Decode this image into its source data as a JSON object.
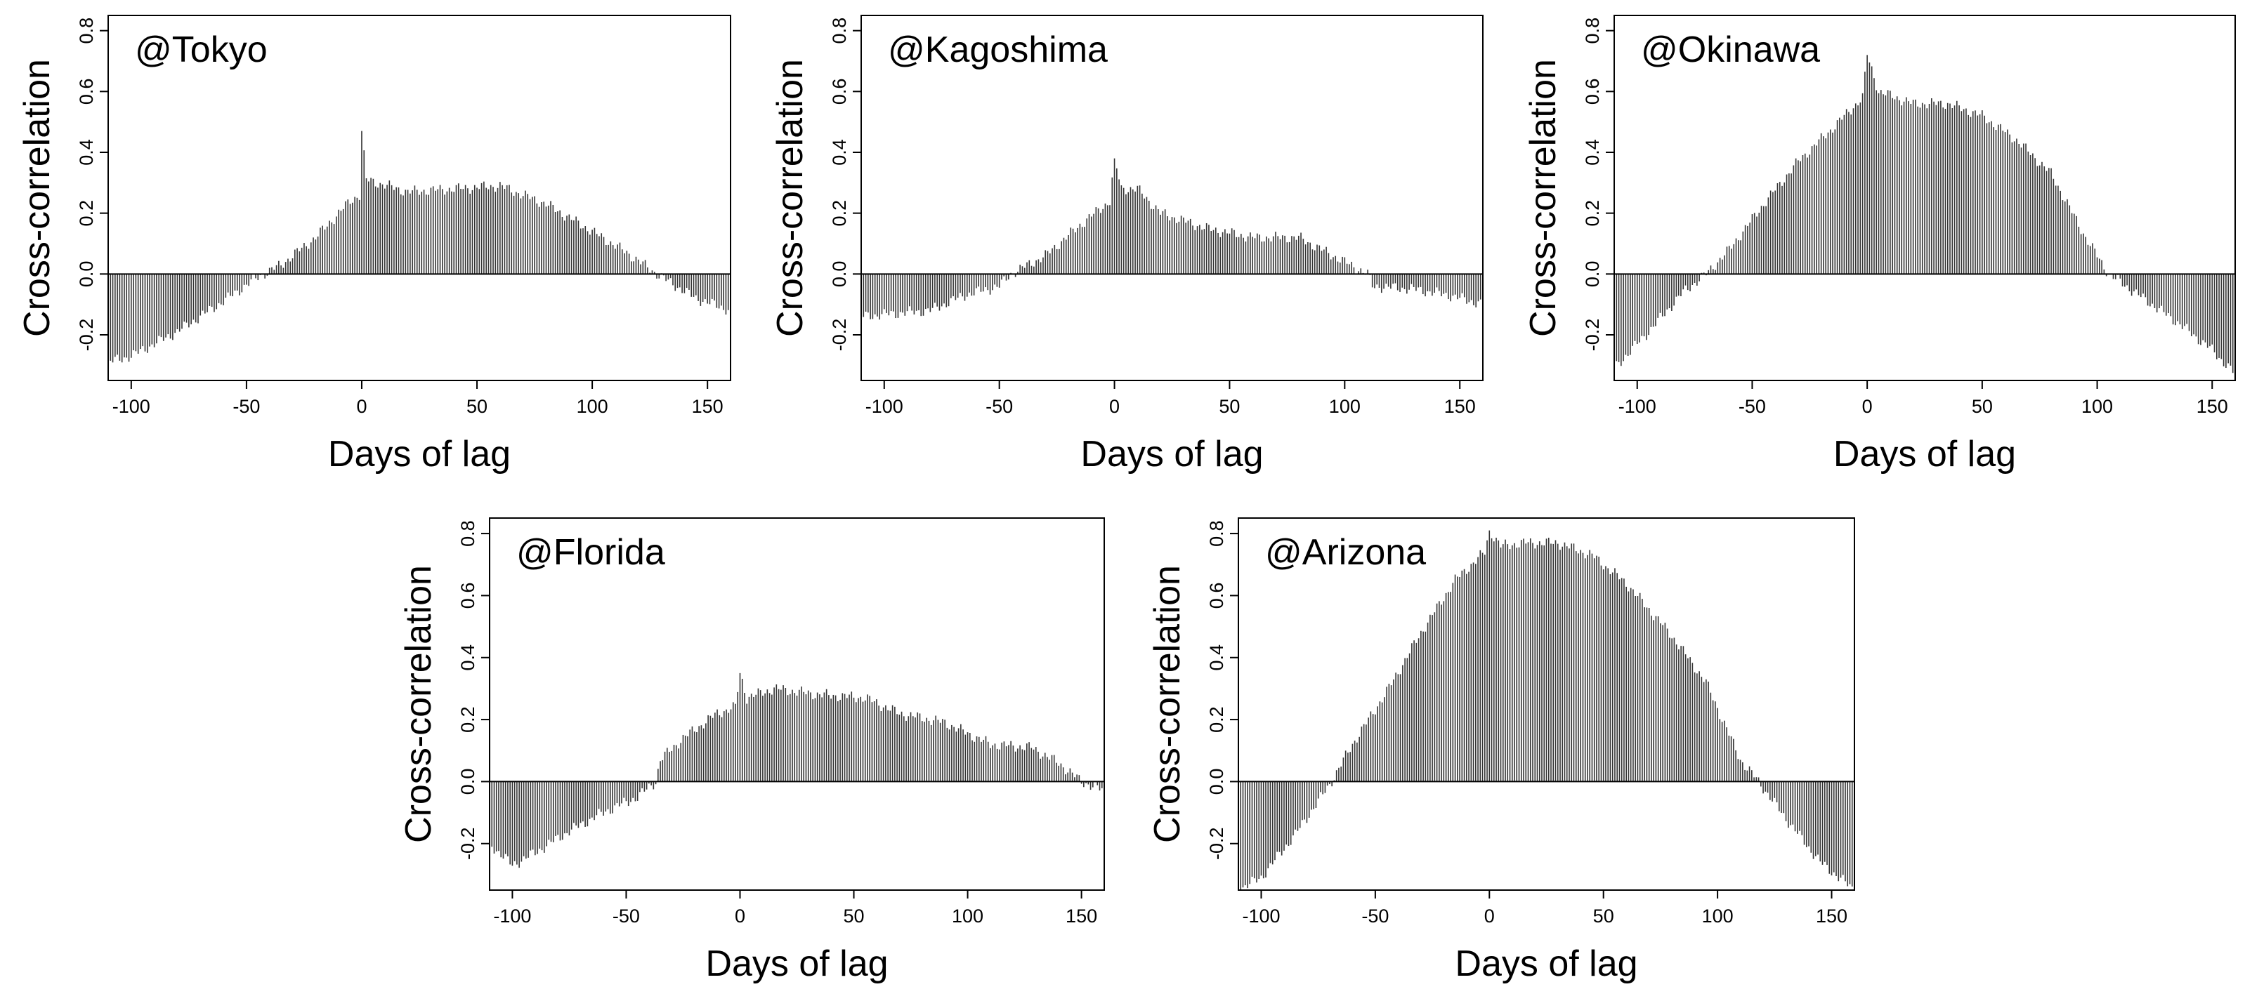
{
  "chart_data": [
    {
      "type": "bar",
      "title": "@Tokyo",
      "xlabel": "Days of lag",
      "ylabel": "Cross-correlation",
      "xlim": [
        -110,
        160
      ],
      "ylim": [
        -0.35,
        0.85
      ],
      "xticks": [
        "-100",
        "-50",
        "0",
        "50",
        "100",
        "150"
      ],
      "yticks": [
        "-0.2",
        "0.0",
        "0.2",
        "0.4",
        "0.6",
        "0.8"
      ],
      "grid": false,
      "legend": "none",
      "bar_color": "#333333",
      "profile": [
        [
          -110,
          -0.29
        ],
        [
          -100,
          -0.27
        ],
        [
          -80,
          -0.19
        ],
        [
          -60,
          -0.09
        ],
        [
          -45,
          -0.01
        ],
        [
          -35,
          0.03
        ],
        [
          -20,
          0.12
        ],
        [
          -5,
          0.24
        ],
        [
          -1,
          0.26
        ],
        [
          0,
          0.47
        ],
        [
          2,
          0.31
        ],
        [
          20,
          0.27
        ],
        [
          40,
          0.28
        ],
        [
          60,
          0.29
        ],
        [
          80,
          0.23
        ],
        [
          100,
          0.14
        ],
        [
          115,
          0.07
        ],
        [
          130,
          -0.01
        ],
        [
          145,
          -0.08
        ],
        [
          160,
          -0.12
        ]
      ]
    },
    {
      "type": "bar",
      "title": "@Kagoshima",
      "xlabel": "Days of lag",
      "ylabel": "Cross-correlation",
      "xlim": [
        -110,
        160
      ],
      "ylim": [
        -0.35,
        0.85
      ],
      "xticks": [
        "-100",
        "-50",
        "0",
        "50",
        "100",
        "150"
      ],
      "yticks": [
        "-0.2",
        "0.0",
        "0.2",
        "0.4",
        "0.6",
        "0.8"
      ],
      "grid": false,
      "legend": "none",
      "bar_color": "#333333",
      "profile": [
        [
          -110,
          -0.14
        ],
        [
          -95,
          -0.13
        ],
        [
          -80,
          -0.12
        ],
        [
          -65,
          -0.07
        ],
        [
          -50,
          -0.04
        ],
        [
          -45,
          0.0
        ],
        [
          -30,
          0.06
        ],
        [
          -15,
          0.16
        ],
        [
          -2,
          0.24
        ],
        [
          0,
          0.38
        ],
        [
          3,
          0.28
        ],
        [
          10,
          0.28
        ],
        [
          20,
          0.2
        ],
        [
          40,
          0.15
        ],
        [
          60,
          0.12
        ],
        [
          80,
          0.12
        ],
        [
          95,
          0.06
        ],
        [
          110,
          0.0
        ],
        [
          112,
          -0.04
        ],
        [
          130,
          -0.05
        ],
        [
          145,
          -0.07
        ],
        [
          160,
          -0.1
        ]
      ]
    },
    {
      "type": "bar",
      "title": "@Okinawa",
      "xlabel": "Days of lag",
      "ylabel": "Cross-correlation",
      "xlim": [
        -110,
        160
      ],
      "ylim": [
        -0.35,
        0.85
      ],
      "xticks": [
        "-100",
        "-50",
        "0",
        "50",
        "100",
        "150"
      ],
      "yticks": [
        "-0.2",
        "0.0",
        "0.2",
        "0.4",
        "0.6",
        "0.8"
      ],
      "grid": false,
      "legend": "none",
      "bar_color": "#333333",
      "profile": [
        [
          -110,
          -0.31
        ],
        [
          -95,
          -0.19
        ],
        [
          -80,
          -0.06
        ],
        [
          -70,
          0.0
        ],
        [
          -60,
          0.08
        ],
        [
          -45,
          0.23
        ],
        [
          -30,
          0.37
        ],
        [
          -15,
          0.48
        ],
        [
          -2,
          0.58
        ],
        [
          0,
          0.72
        ],
        [
          5,
          0.6
        ],
        [
          20,
          0.56
        ],
        [
          35,
          0.56
        ],
        [
          50,
          0.52
        ],
        [
          65,
          0.44
        ],
        [
          80,
          0.33
        ],
        [
          95,
          0.12
        ],
        [
          105,
          0.0
        ],
        [
          120,
          -0.08
        ],
        [
          135,
          -0.16
        ],
        [
          150,
          -0.25
        ],
        [
          160,
          -0.33
        ]
      ]
    },
    {
      "type": "bar",
      "title": "@Florida",
      "xlabel": "Days of lag",
      "ylabel": "Cross-correlation",
      "xlim": [
        -110,
        160
      ],
      "ylim": [
        -0.35,
        0.85
      ],
      "xticks": [
        "-100",
        "-50",
        "0",
        "50",
        "100",
        "150"
      ],
      "yticks": [
        "-0.2",
        "0.0",
        "0.2",
        "0.4",
        "0.6",
        "0.8"
      ],
      "grid": false,
      "legend": "none",
      "bar_color": "#333333",
      "profile": [
        [
          -110,
          -0.2
        ],
        [
          -100,
          -0.27
        ],
        [
          -90,
          -0.23
        ],
        [
          -75,
          -0.16
        ],
        [
          -60,
          -0.1
        ],
        [
          -45,
          -0.05
        ],
        [
          -37,
          0.0
        ],
        [
          -35,
          0.07
        ],
        [
          -25,
          0.14
        ],
        [
          -10,
          0.22
        ],
        [
          -2,
          0.24
        ],
        [
          0,
          0.35
        ],
        [
          3,
          0.27
        ],
        [
          15,
          0.3
        ],
        [
          35,
          0.28
        ],
        [
          55,
          0.27
        ],
        [
          70,
          0.22
        ],
        [
          90,
          0.19
        ],
        [
          110,
          0.12
        ],
        [
          128,
          0.11
        ],
        [
          140,
          0.06
        ],
        [
          150,
          0.0
        ],
        [
          160,
          -0.03
        ]
      ]
    },
    {
      "type": "bar",
      "title": "@Arizona",
      "xlabel": "Days of lag",
      "ylabel": "Cross-correlation",
      "xlim": [
        -110,
        160
      ],
      "ylim": [
        -0.35,
        0.85
      ],
      "xticks": [
        "-100",
        "-50",
        "0",
        "50",
        "100",
        "150"
      ],
      "yticks": [
        "-0.2",
        "0.0",
        "0.2",
        "0.4",
        "0.6",
        "0.8"
      ],
      "grid": false,
      "legend": "none",
      "bar_color": "#333333",
      "profile": [
        [
          -110,
          -0.35
        ],
        [
          -100,
          -0.31
        ],
        [
          -85,
          -0.17
        ],
        [
          -70,
          -0.01
        ],
        [
          -60,
          0.12
        ],
        [
          -45,
          0.29
        ],
        [
          -30,
          0.48
        ],
        [
          -15,
          0.65
        ],
        [
          -2,
          0.74
        ],
        [
          0,
          0.81
        ],
        [
          5,
          0.76
        ],
        [
          15,
          0.77
        ],
        [
          30,
          0.77
        ],
        [
          45,
          0.73
        ],
        [
          60,
          0.64
        ],
        [
          80,
          0.47
        ],
        [
          95,
          0.32
        ],
        [
          110,
          0.07
        ],
        [
          118,
          0.0
        ],
        [
          130,
          -0.12
        ],
        [
          145,
          -0.26
        ],
        [
          160,
          -0.35
        ]
      ]
    }
  ]
}
